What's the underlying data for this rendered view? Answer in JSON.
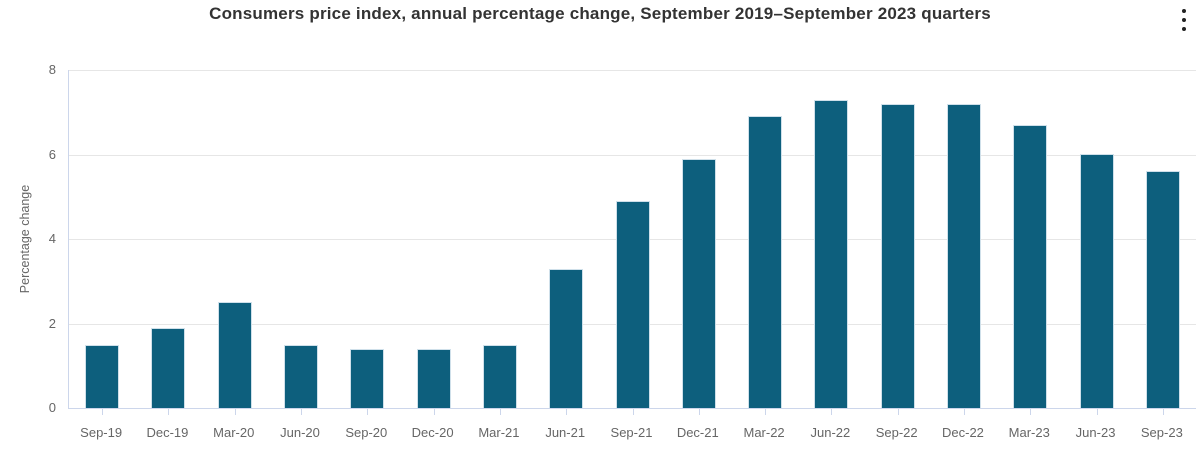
{
  "header": {
    "title": "Consumers price index, annual percentage change, September 2019–September 2023 quarters",
    "menu_icon": "kebab-menu-icon"
  },
  "colors": {
    "bar": "#0d5f7d",
    "bar_border": "#cfe0ea",
    "gridline": "#e6e6e6",
    "axis_line": "#ccd6eb",
    "tick_label": "#666666",
    "title_text": "#333333",
    "axis_title_text": "#666666"
  },
  "chart_data": {
    "type": "bar",
    "title": "Consumers price index, annual percentage change, September 2019–September 2023 quarters",
    "categories": [
      "Sep-19",
      "Dec-19",
      "Mar-20",
      "Jun-20",
      "Sep-20",
      "Dec-20",
      "Mar-21",
      "Jun-21",
      "Sep-21",
      "Dec-21",
      "Mar-22",
      "Jun-22",
      "Sep-22",
      "Dec-22",
      "Mar-23",
      "Jun-23",
      "Sep-23"
    ],
    "values": [
      1.5,
      1.9,
      2.5,
      1.5,
      1.4,
      1.4,
      1.5,
      3.3,
      4.9,
      5.9,
      6.9,
      7.3,
      7.2,
      7.2,
      6.7,
      6.0,
      5.6
    ],
    "xlabel": "",
    "ylabel": "Percentage change",
    "ylim": [
      0,
      8
    ],
    "yticks": [
      0,
      2,
      4,
      6,
      8
    ],
    "grid": true,
    "legend": false
  }
}
